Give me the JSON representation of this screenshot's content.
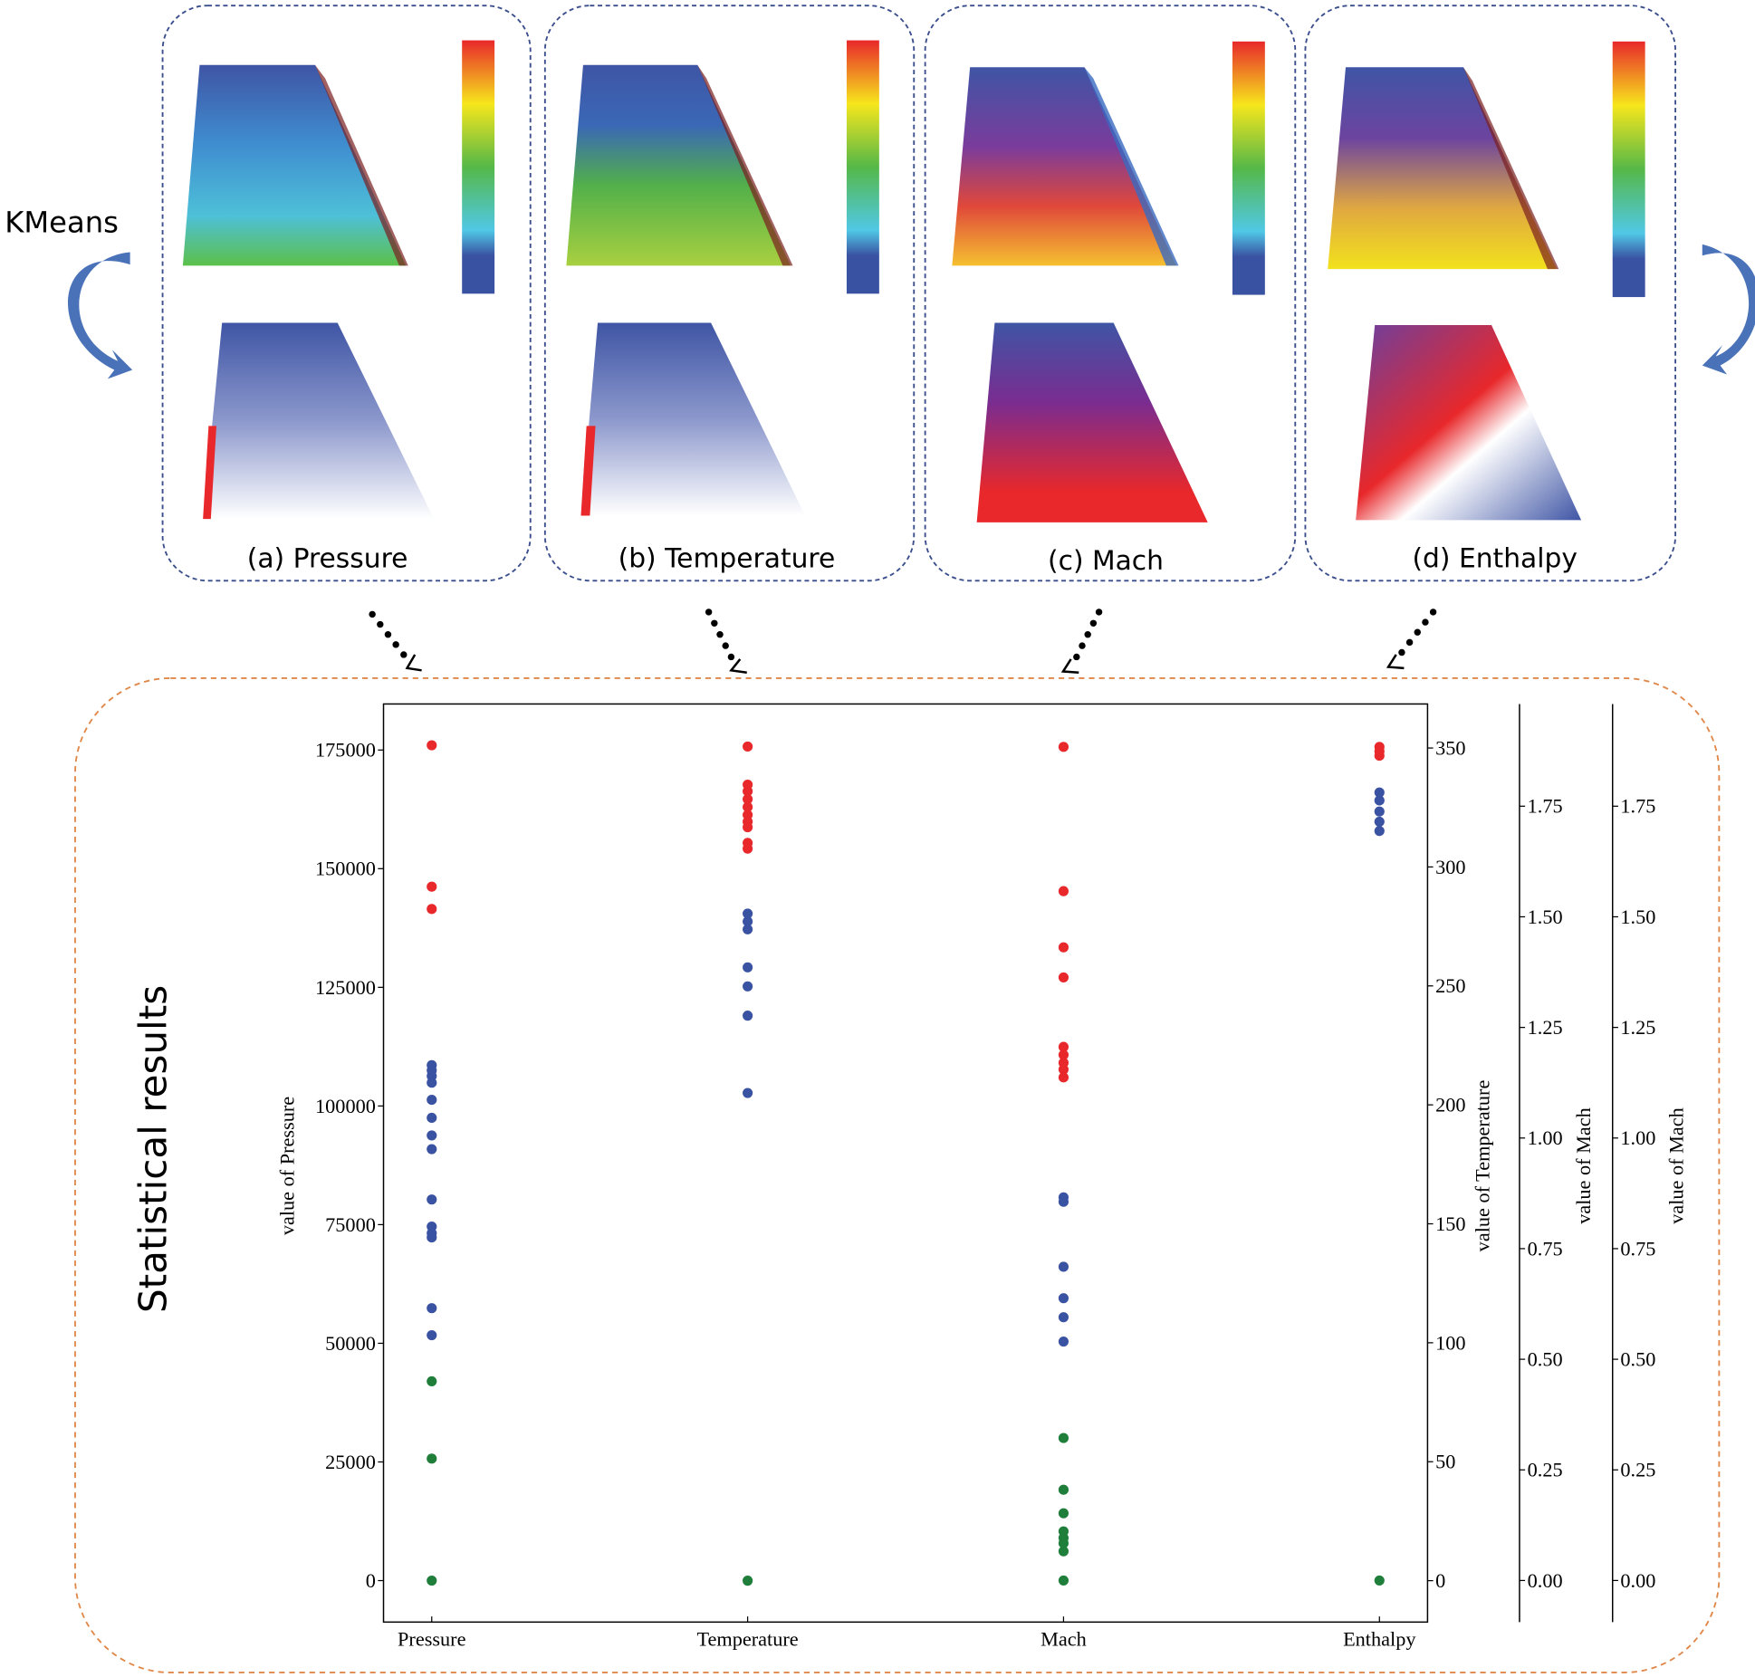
{
  "kmeans_label": "KMeans",
  "side_label": "Statistical results",
  "panels": [
    "(a) Pressure",
    "(b) Temperature",
    "(c) Mach",
    "(d) Enthalpy"
  ],
  "chart_data": {
    "type": "scatter",
    "categories": [
      "Pressure",
      "Temperature",
      "Mach",
      "Enthalpy"
    ],
    "ylabel": "value of Pressure",
    "ylim": [
      -8740,
      184700
    ],
    "yticks": [
      0,
      25000,
      50000,
      75000,
      100000,
      125000,
      150000,
      175000
    ],
    "y2label": "value of Temperature",
    "y2lim": [
      -17.4,
      368.5
    ],
    "y2ticks": [
      0,
      50,
      100,
      150,
      200,
      250,
      300,
      350
    ],
    "y3label": "value of Mach",
    "y3lim": [
      -0.094,
      1.981
    ],
    "y3ticks": [
      {
        "value": 0,
        "label": "0.00"
      },
      {
        "value": 0.25,
        "label": "0.25"
      },
      {
        "value": 0.5,
        "label": "0.50"
      },
      {
        "value": 0.75,
        "label": "0.75"
      },
      {
        "value": 1,
        "label": "1.00"
      },
      {
        "value": 1.25,
        "label": "1.25"
      },
      {
        "value": 1.5,
        "label": "1.50"
      },
      {
        "value": 1.75,
        "label": "1.75"
      }
    ],
    "y4label": "value of Mach",
    "y4lim": [
      -0.094,
      1.981
    ],
    "y4ticks": [
      {
        "value": 0,
        "label": "0.00"
      },
      {
        "value": 0.25,
        "label": "0.25"
      },
      {
        "value": 0.5,
        "label": "0.50"
      },
      {
        "value": 0.75,
        "label": "0.75"
      },
      {
        "value": 1,
        "label": "1.00"
      },
      {
        "value": 1.25,
        "label": "1.25"
      },
      {
        "value": 1.5,
        "label": "1.50"
      },
      {
        "value": 1.75,
        "label": "1.75"
      }
    ],
    "series": [
      {
        "axis": "y",
        "values": [
          176000,
          146200,
          141500,
          108600,
          107500,
          106300,
          104900,
          101300,
          97500,
          93800,
          90900,
          80300,
          74600,
          73200,
          72300,
          57400,
          51700,
          42000,
          25700,
          0
        ],
        "colors": [
          "#e8282b",
          "#e8282b",
          "#e8282b",
          "#3a52a2",
          "#3a52a2",
          "#3a52a2",
          "#3a52a2",
          "#3a52a2",
          "#3a52a2",
          "#3a52a2",
          "#3a52a2",
          "#3a52a2",
          "#3a52a2",
          "#3a52a2",
          "#3a52a2",
          "#3a52a2",
          "#3a52a2",
          "#1e7e3a",
          "#1e7e3a",
          "#1e7e3a"
        ]
      },
      {
        "axis": "y2",
        "values": [
          350.6,
          334.6,
          331.8,
          328.5,
          325.2,
          321.9,
          319,
          316.7,
          310.1,
          307.7,
          280.4,
          277.1,
          273.8,
          257.8,
          249.8,
          237.5,
          205,
          0
        ],
        "colors": [
          "#e8282b",
          "#e8282b",
          "#e8282b",
          "#e8282b",
          "#e8282b",
          "#e8282b",
          "#e8282b",
          "#e8282b",
          "#e8282b",
          "#e8282b",
          "#3a52a2",
          "#3a52a2",
          "#3a52a2",
          "#3a52a2",
          "#3a52a2",
          "#3a52a2",
          "#3a52a2",
          "#1e7e3a"
        ]
      },
      {
        "axis": "y3",
        "values": [
          1.884,
          1.558,
          1.431,
          1.363,
          1.206,
          1.188,
          1.17,
          1.155,
          1.137,
          0.866,
          0.856,
          0.709,
          0.638,
          0.595,
          0.54,
          0.322,
          0.205,
          0.152,
          0.111,
          0.096,
          0.084,
          0.066,
          0
        ],
        "colors": [
          "#e8282b",
          "#e8282b",
          "#e8282b",
          "#e8282b",
          "#e8282b",
          "#e8282b",
          "#e8282b",
          "#e8282b",
          "#e8282b",
          "#3a52a2",
          "#3a52a2",
          "#3a52a2",
          "#3a52a2",
          "#3a52a2",
          "#3a52a2",
          "#1e7e3a",
          "#1e7e3a",
          "#1e7e3a",
          "#1e7e3a",
          "#1e7e3a",
          "#1e7e3a",
          "#1e7e3a",
          "#1e7e3a"
        ]
      },
      {
        "axis": "y4",
        "values": [
          1.884,
          1.874,
          1.864,
          1.781,
          1.763,
          1.738,
          1.715,
          1.694,
          0
        ],
        "colors": [
          "#e8282b",
          "#e8282b",
          "#e8282b",
          "#3a52a2",
          "#3a52a2",
          "#3a52a2",
          "#3a52a2",
          "#3a52a2",
          "#1e7e3a"
        ]
      }
    ]
  }
}
